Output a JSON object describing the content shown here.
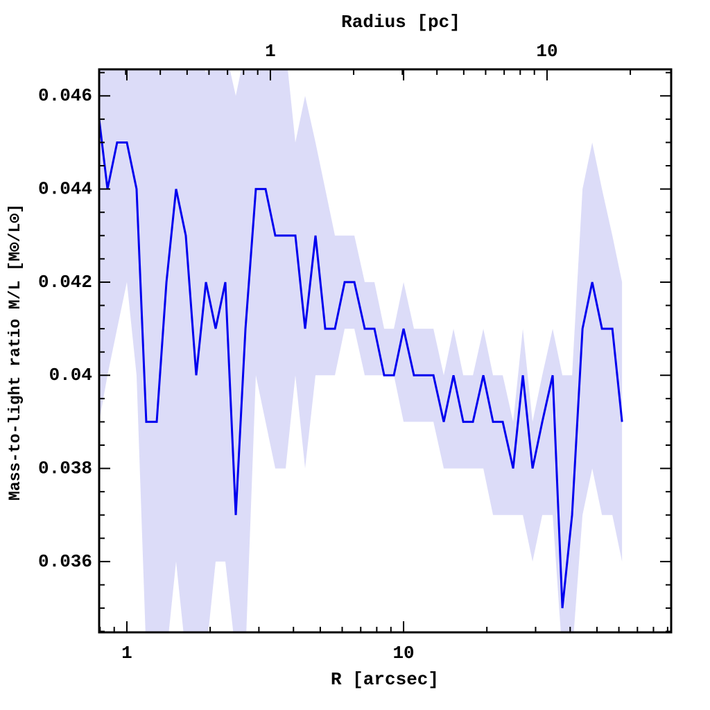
{
  "chart_data": {
    "type": "line",
    "xlabel": "R [arcsec]",
    "x2label": "Radius [pc]",
    "ylabel": "Mass-to-light ratio M/L [M⊙/L⊙]",
    "xscale": "log",
    "xlim": [
      0.794,
      92.7
    ],
    "xticks": [
      1,
      10
    ],
    "xminorticks": [
      0.8,
      0.9,
      2,
      3,
      4,
      5,
      6,
      7,
      8,
      9,
      20,
      30,
      40,
      50,
      60,
      70,
      80,
      90
    ],
    "x2lim": [
      0.2405,
      28.1
    ],
    "x2ticks": [
      1,
      10
    ],
    "x2minorticks": [
      0.3,
      0.4,
      0.5,
      0.6,
      0.7,
      0.8,
      0.9,
      2,
      3,
      4,
      5,
      6,
      7,
      8,
      9,
      20
    ],
    "ylim": [
      0.03448,
      0.04657
    ],
    "yticks": [
      0.036,
      0.038,
      0.04,
      0.042,
      0.044,
      0.046
    ],
    "yminorticks": [
      0.0345,
      0.035,
      0.0355,
      0.0365,
      0.037,
      0.0375,
      0.0385,
      0.039,
      0.0395,
      0.0405,
      0.041,
      0.0415,
      0.0425,
      0.043,
      0.0435,
      0.0445,
      0.045,
      0.0455,
      0.0465
    ],
    "x": [
      0.794,
      0.851,
      0.922,
      1,
      1.084,
      1.175,
      1.282,
      1.39,
      1.506,
      1.633,
      1.781,
      1.931,
      2.093,
      2.269,
      2.475,
      2.683,
      2.925,
      3.171,
      3.438,
      3.749,
      4.064,
      4.407,
      4.805,
      5.21,
      5.648,
      6.124,
      6.639,
      7.238,
      7.847,
      8.508,
      9.224,
      10,
      10.9,
      11.82,
      12.82,
      13.97,
      15.15,
      16.43,
      17.81,
      19.42,
      21.05,
      22.82,
      24.89,
      26.98,
      29.25,
      31.71,
      34.58,
      37.49,
      40.64,
      44.33,
      48.06,
      52.11,
      56.82,
      61.6
    ],
    "series": [
      {
        "color": "#0000ee",
        "values": [
          0.0455,
          0.044,
          0.045,
          0.045,
          0.044,
          0.039,
          0.039,
          0.042,
          0.044,
          0.043,
          0.04,
          0.042,
          0.041,
          0.042,
          0.037,
          0.041,
          0.044,
          0.044,
          0.043,
          0.043,
          0.043,
          0.041,
          0.043,
          0.041,
          0.041,
          0.042,
          0.042,
          0.041,
          0.041,
          0.04,
          0.04,
          0.041,
          0.04,
          0.04,
          0.04,
          0.039,
          0.04,
          0.039,
          0.039,
          0.04,
          0.039,
          0.039,
          0.038,
          0.04,
          0.038,
          0.039,
          0.04,
          0.035,
          0.037,
          0.041,
          0.042,
          0.041,
          0.041,
          0.039
        ]
      }
    ],
    "band": {
      "color": "#dcdcf8",
      "upper": [
        0.047,
        0.047,
        0.047,
        0.047,
        0.047,
        0.047,
        0.047,
        0.047,
        0.047,
        0.047,
        0.047,
        0.0465,
        0.047,
        0.047,
        0.046,
        0.047,
        0.047,
        0.047,
        0.047,
        0.047,
        0.045,
        0.046,
        0.045,
        0.044,
        0.043,
        0.043,
        0.043,
        0.042,
        0.042,
        0.041,
        0.041,
        0.042,
        0.041,
        0.041,
        0.041,
        0.04,
        0.041,
        0.04,
        0.04,
        0.041,
        0.04,
        0.04,
        0.039,
        0.041,
        0.039,
        0.04,
        0.041,
        0.04,
        0.04,
        0.044,
        0.045,
        0.044,
        0.043,
        0.042
      ],
      "lower": [
        0.039,
        0.04,
        0.041,
        0.042,
        0.04,
        0.034,
        0.034,
        0.034,
        0.036,
        0.034,
        0.034,
        0.034,
        0.036,
        0.036,
        0.034,
        0.034,
        0.04,
        0.039,
        0.038,
        0.038,
        0.04,
        0.038,
        0.04,
        0.04,
        0.04,
        0.041,
        0.041,
        0.04,
        0.04,
        0.04,
        0.04,
        0.039,
        0.039,
        0.039,
        0.039,
        0.038,
        0.038,
        0.038,
        0.038,
        0.038,
        0.037,
        0.037,
        0.037,
        0.037,
        0.036,
        0.037,
        0.037,
        0.034,
        0.034,
        0.037,
        0.038,
        0.037,
        0.037,
        0.036
      ]
    }
  }
}
